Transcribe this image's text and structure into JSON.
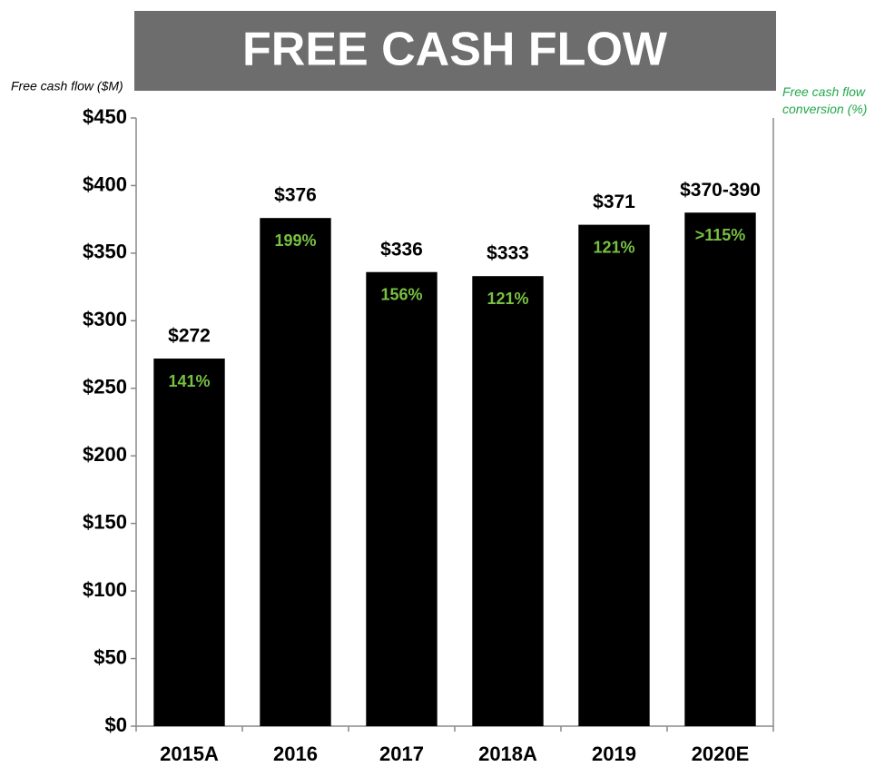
{
  "chart_data": {
    "type": "bar",
    "title": "FREE CASH FLOW",
    "y_label": "Free cash flow ($M)",
    "y2_label": "Free cash flow conversion (%)",
    "categories": [
      "2015A",
      "2016",
      "2017",
      "2018A",
      "2019",
      "2020E"
    ],
    "values": [
      272,
      376,
      336,
      333,
      371,
      380
    ],
    "value_labels": [
      "$272",
      "$376",
      "$336",
      "$333",
      "$371",
      "$370-390"
    ],
    "color": "#000000",
    "conversion": {
      "color": "#77c043",
      "values": [
        141,
        199,
        156,
        121,
        121,
        115
      ],
      "value_labels": [
        "141%",
        "199%",
        "156%",
        "121%",
        "121%",
        ">115%"
      ]
    },
    "ylim": [
      0,
      450
    ],
    "yticks": [
      {
        "value": 0,
        "label": "$0"
      },
      {
        "value": 50,
        "label": "$50"
      },
      {
        "value": 100,
        "label": "$100"
      },
      {
        "value": 150,
        "label": "$150"
      },
      {
        "value": 200,
        "label": "$200"
      },
      {
        "value": 250,
        "label": "$250"
      },
      {
        "value": 300,
        "label": "$300"
      },
      {
        "value": 350,
        "label": "$350"
      },
      {
        "value": 400,
        "label": "$400"
      },
      {
        "value": 450,
        "label": "$450"
      }
    ],
    "grid": false
  }
}
